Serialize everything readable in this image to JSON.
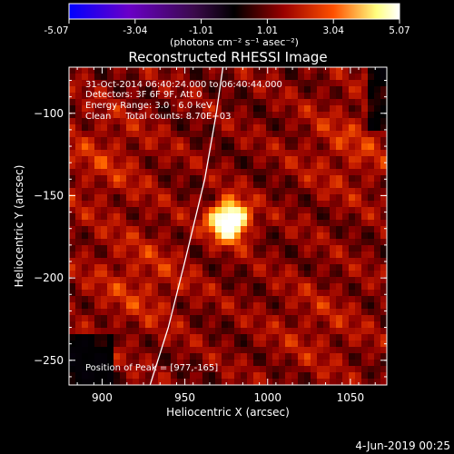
{
  "chart_data": {
    "type": "heatmap",
    "title": "Reconstructed RHESSI Image",
    "xlabel": "Heliocentric X (arcsec)",
    "ylabel": "Heliocentric Y (arcsec)",
    "xlim": [
      880,
      1072
    ],
    "ylim": [
      -265,
      -72
    ],
    "xticks": [
      900,
      950,
      1000,
      1050
    ],
    "yticks": [
      -100,
      -150,
      -200,
      -250
    ],
    "colorbar": {
      "ticks": [
        "-5.07",
        "-3.04",
        "-1.01",
        "1.01",
        "3.04",
        "5.07"
      ],
      "range": [
        -5.07,
        5.07
      ],
      "unit_label": "(photons cm⁻² s⁻¹ asec⁻²)",
      "colors": [
        "#0000ff",
        "#6a00c8",
        "#3a0a4a",
        "#000000",
        "#9a0000",
        "#ff5000",
        "#ffff80",
        "#ffffff"
      ]
    },
    "annotations": [
      "31-Oct-2014 06:40:24.000 to 06:40:44.000",
      "Detectors: 3F 6F 9F, Att 0",
      "Energy Range: 3.0 - 6.0 keV",
      "Clean     Total counts: 8.70E+03"
    ],
    "peak": {
      "x": 977,
      "y": -165,
      "label": "Position of Peak = [977,-165]"
    },
    "sources": [
      {
        "x": 977,
        "y": -165,
        "value": 5.07
      },
      {
        "x": 922,
        "y": -203,
        "value": 1.5
      },
      {
        "x": 1050,
        "y": -120,
        "value": 1.4
      },
      {
        "x": 900,
        "y": -128,
        "value": 1.3
      },
      {
        "x": 1030,
        "y": -230,
        "value": 1.0
      }
    ],
    "limb_curve": [
      [
        929,
        -265
      ],
      [
        940,
        -230
      ],
      [
        950,
        -190
      ],
      [
        962,
        -140
      ],
      [
        969,
        -100
      ],
      [
        973,
        -72
      ]
    ]
  },
  "footer": {
    "date": "4-Jun-2019 00:25"
  }
}
